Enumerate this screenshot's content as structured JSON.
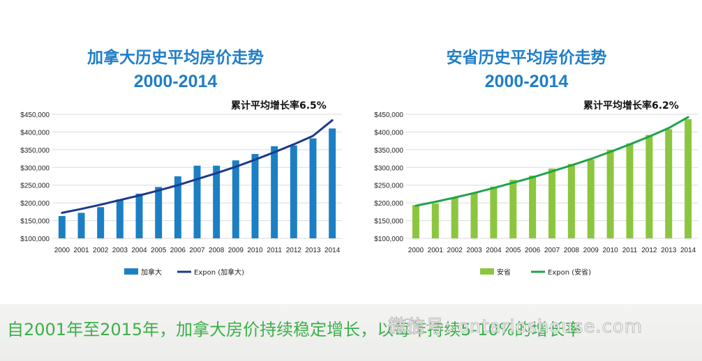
{
  "charts": [
    {
      "id": "left",
      "title": "加拿大历史平均房价走势",
      "subtitle": "2000-2014",
      "growth_note": "累计平均增长率6.5%",
      "title_color": "#1f7ec8",
      "bar_color": "#1c7fc4",
      "trend_color": "#1b3a8a",
      "legend_bar_label": "加拿大",
      "legend_trend_label": "Expon (加拿大)"
    },
    {
      "id": "right",
      "title": "安省历史平均房价走势",
      "subtitle": "2000-2014",
      "growth_note": "累计平均增长率6.2%",
      "title_color": "#1f7ec8",
      "bar_color": "#8cc63f",
      "trend_color": "#1fa34a",
      "legend_bar_label": "安省",
      "legend_trend_label": "Expon (安省)"
    }
  ],
  "chart_data": [
    {
      "type": "bar",
      "title": "加拿大历史平均房价走势",
      "subtitle": "2000-2014",
      "annotation": "累计平均增长率6.5%",
      "categories": [
        "2000",
        "2001",
        "2002",
        "2003",
        "2004",
        "2005",
        "2006",
        "2007",
        "2008",
        "2009",
        "2010",
        "2011",
        "2012",
        "2013",
        "2014"
      ],
      "series": [
        {
          "name": "加拿大",
          "kind": "bar",
          "values": [
            163000,
            172000,
            188000,
            210000,
            226000,
            245000,
            275000,
            305000,
            305000,
            320000,
            338000,
            360000,
            362000,
            382000,
            410000
          ]
        },
        {
          "name": "Expon (加拿大)",
          "kind": "line",
          "values": [
            172000,
            183000,
            195000,
            208000,
            221000,
            235000,
            250000,
            267000,
            284000,
            302000,
            322000,
            343000,
            365000,
            389000,
            433000
          ]
        }
      ],
      "ylim": [
        100000,
        450000
      ],
      "yticks": [
        "$100,000",
        "$150,000",
        "$200,000",
        "$250,000",
        "$300,000",
        "$350,000",
        "$400,000",
        "$450,000"
      ],
      "grid": true,
      "legend_position": "bottom"
    },
    {
      "type": "bar",
      "title": "安省历史平均房价走势",
      "subtitle": "2000-2014",
      "annotation": "累计平均增长率6.2%",
      "categories": [
        "2000",
        "2001",
        "2002",
        "2003",
        "2004",
        "2005",
        "2006",
        "2007",
        "2008",
        "2009",
        "2010",
        "2011",
        "2012",
        "2013",
        "2014"
      ],
      "series": [
        {
          "name": "安省",
          "kind": "bar",
          "values": [
            194000,
            198000,
            215000,
            228000,
            246000,
            265000,
            277000,
            297000,
            310000,
            322000,
            350000,
            368000,
            392000,
            408000,
            436000
          ]
        },
        {
          "name": "Expon (安省)",
          "kind": "line",
          "values": [
            192000,
            203000,
            215000,
            228000,
            242000,
            257000,
            272000,
            289000,
            306000,
            324000,
            344000,
            365000,
            387000,
            411000,
            442000
          ]
        }
      ],
      "ylim": [
        100000,
        450000
      ],
      "yticks": [
        "$100,000",
        "$150,000",
        "$200,000",
        "$250,000",
        "$300,000",
        "$350,000",
        "$400,000",
        "$450,000"
      ],
      "grid": true,
      "legend_position": "bottom"
    }
  ],
  "footer": {
    "text": "自2001年至2015年，加拿大房价持续稳定增长，以每年持续5-10%的增长率",
    "color": "#3bb04a",
    "watermark": "微信号: ontarioshouse.com"
  }
}
